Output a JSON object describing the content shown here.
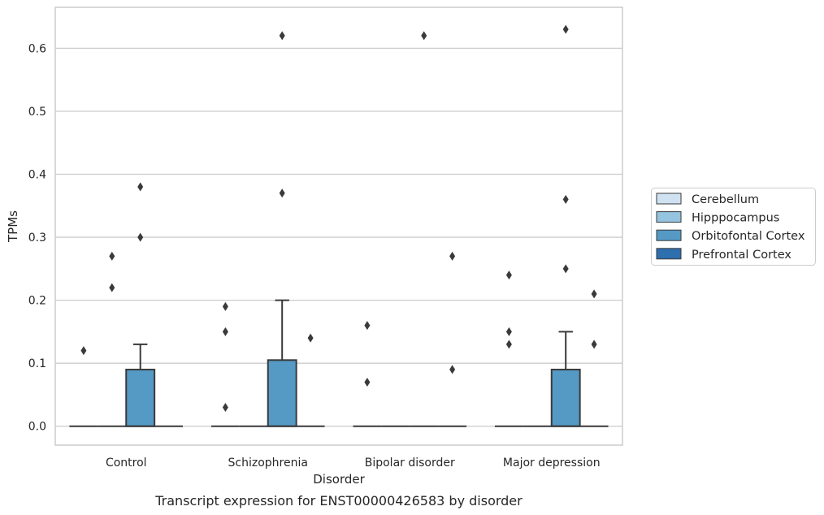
{
  "chart_data": {
    "type": "box",
    "title": "",
    "caption": "Transcript expression for ENST00000426583 by disorder",
    "xlabel": "Disorder",
    "ylabel": "TPMs",
    "ylim": [
      -0.03,
      0.665
    ],
    "yticks": [
      0.0,
      0.1,
      0.2,
      0.3,
      0.4,
      0.5,
      0.6
    ],
    "ytick_labels": [
      "0.0",
      "0.1",
      "0.2",
      "0.3",
      "0.4",
      "0.5",
      "0.6"
    ],
    "grid": "horizontal",
    "legend_position": "right",
    "categories": [
      "Control",
      "Schizophrenia",
      "Bipolar disorder",
      "Major depression"
    ],
    "series": [
      {
        "name": "Cerebellum",
        "color": "#d0e1f2",
        "boxes": [
          {
            "q1": 0.0,
            "median": 0.0,
            "q3": 0.0,
            "whisker_low": 0.0,
            "whisker_high": 0.0,
            "outliers": [
              0.12
            ]
          },
          {
            "q1": 0.0,
            "median": 0.0,
            "q3": 0.0,
            "whisker_low": 0.0,
            "whisker_high": 0.0,
            "outliers": [
              0.19,
              0.15,
              0.03
            ]
          },
          {
            "q1": 0.0,
            "median": 0.0,
            "q3": 0.0,
            "whisker_low": 0.0,
            "whisker_high": 0.0,
            "outliers": [
              0.16,
              0.07
            ]
          },
          {
            "q1": 0.0,
            "median": 0.0,
            "q3": 0.0,
            "whisker_low": 0.0,
            "whisker_high": 0.0,
            "outliers": [
              0.24,
              0.15,
              0.13
            ]
          }
        ]
      },
      {
        "name": "Hipppocampus",
        "color": "#94c4df",
        "boxes": [
          {
            "q1": 0.0,
            "median": 0.0,
            "q3": 0.0,
            "whisker_low": 0.0,
            "whisker_high": 0.0,
            "outliers": [
              0.27,
              0.22
            ]
          },
          {
            "q1": 0.0,
            "median": 0.0,
            "q3": 0.0,
            "whisker_low": 0.0,
            "whisker_high": 0.0,
            "outliers": []
          },
          {
            "q1": 0.0,
            "median": 0.0,
            "q3": 0.0,
            "whisker_low": 0.0,
            "whisker_high": 0.0,
            "outliers": []
          },
          {
            "q1": 0.0,
            "median": 0.0,
            "q3": 0.0,
            "whisker_low": 0.0,
            "whisker_high": 0.0,
            "outliers": []
          }
        ]
      },
      {
        "name": "Orbitofontal Cortex",
        "color": "#5599c5",
        "boxes": [
          {
            "q1": 0.0,
            "median": 0.0,
            "q3": 0.09,
            "whisker_low": 0.0,
            "whisker_high": 0.13,
            "outliers": [
              0.38,
              0.3
            ]
          },
          {
            "q1": 0.0,
            "median": 0.0,
            "q3": 0.105,
            "whisker_low": 0.0,
            "whisker_high": 0.2,
            "outliers": [
              0.62,
              0.37
            ]
          },
          {
            "q1": 0.0,
            "median": 0.0,
            "q3": 0.0,
            "whisker_low": 0.0,
            "whisker_high": 0.0,
            "outliers": [
              0.62
            ]
          },
          {
            "q1": 0.0,
            "median": 0.0,
            "q3": 0.09,
            "whisker_low": 0.0,
            "whisker_high": 0.15,
            "outliers": [
              0.63,
              0.36,
              0.25
            ]
          }
        ]
      },
      {
        "name": "Prefrontal Cortex",
        "color": "#2e6fae",
        "boxes": [
          {
            "q1": 0.0,
            "median": 0.0,
            "q3": 0.0,
            "whisker_low": 0.0,
            "whisker_high": 0.0,
            "outliers": []
          },
          {
            "q1": 0.0,
            "median": 0.0,
            "q3": 0.0,
            "whisker_low": 0.0,
            "whisker_high": 0.0,
            "outliers": [
              0.14
            ]
          },
          {
            "q1": 0.0,
            "median": 0.0,
            "q3": 0.0,
            "whisker_low": 0.0,
            "whisker_high": 0.0,
            "outliers": [
              0.27,
              0.09
            ]
          },
          {
            "q1": 0.0,
            "median": 0.0,
            "q3": 0.0,
            "whisker_low": 0.0,
            "whisker_high": 0.0,
            "outliers": [
              0.21,
              0.13
            ]
          }
        ]
      }
    ]
  }
}
